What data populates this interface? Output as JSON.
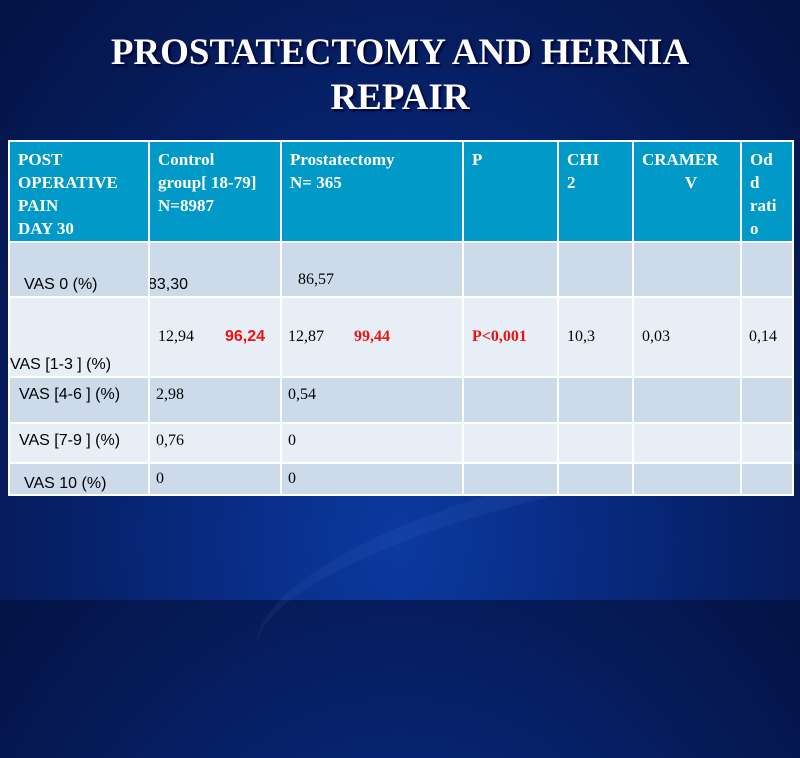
{
  "title_lines": [
    "PROSTATECTOMY AND HERNIA",
    "REPAIR"
  ],
  "table": {
    "headers": {
      "pain": [
        "POST",
        "OPERATIVE",
        "PAIN",
        "DAY 30"
      ],
      "control": [
        "Control",
        "group[ 18-79]",
        "N=8987"
      ],
      "prostatectomy": [
        "Prostatectomy",
        "N= 365"
      ],
      "p": "P",
      "chi": [
        "CHI",
        "2"
      ],
      "cramer": [
        "CRAMER",
        "V"
      ],
      "odd": [
        "Od",
        "d",
        "rati",
        "o"
      ]
    },
    "rows": [
      {
        "label": "VAS 0     (%)",
        "control": "83,30",
        "prostatectomy": "86,57"
      },
      {
        "label": "VAS  [1-3 ]   (%)",
        "control": "12,94",
        "control_sum": "96,24",
        "prostatectomy": "12,87",
        "prostatectomy_sum": "99,44",
        "p": "P<0,001",
        "chi": "10,3",
        "cramer": "0,03",
        "odd": "0,14"
      },
      {
        "label": "VAS [4-6 ]   (%)",
        "control": "2,98",
        "prostatectomy": "0,54"
      },
      {
        "label": "VAS [7-9 ]   (%)",
        "control": "0,76",
        "prostatectomy": "0"
      },
      {
        "label": "VAS  10      (%)",
        "control": "0",
        "prostatectomy": "0"
      }
    ]
  }
}
